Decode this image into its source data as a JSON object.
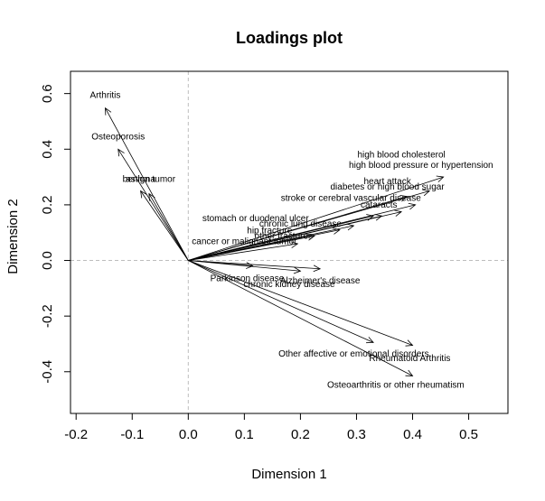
{
  "chart_data": {
    "type": "biplot-arrows",
    "title": "Loadings plot",
    "xlabel": "Dimension 1",
    "ylabel": "Dimension 2",
    "xlim": [
      -0.21,
      0.57
    ],
    "ylim": [
      -0.55,
      0.68
    ],
    "x_ticks": [
      -0.2,
      -0.1,
      0.0,
      0.1,
      0.2,
      0.3,
      0.4,
      0.5
    ],
    "x_tick_labels": [
      "-0.2",
      "-0.1",
      "0.0",
      "0.1",
      "0.2",
      "0.3",
      "0.4",
      "0.5"
    ],
    "y_ticks": [
      -0.4,
      -0.2,
      0.0,
      0.2,
      0.4,
      0.6
    ],
    "y_tick_labels": [
      "-0.4",
      "-0.2",
      "0.0",
      "0.2",
      "0.4",
      "0.6"
    ],
    "reference_lines": "dashed at x=0 and y=0",
    "variables": [
      {
        "label": "Arthritis",
        "x": -0.148,
        "y": 0.548,
        "lx": -0.148,
        "ly": 0.585
      },
      {
        "label": "Osteoporosis",
        "x": -0.125,
        "y": 0.4,
        "lx": -0.125,
        "ly": 0.435
      },
      {
        "label": "asthma",
        "x": -0.085,
        "y": 0.25,
        "lx": -0.085,
        "ly": 0.282
      },
      {
        "label": "benign tumor",
        "x": -0.07,
        "y": 0.24,
        "lx": -0.07,
        "ly": 0.282
      },
      {
        "label": "high blood cholesterol",
        "x": 0.43,
        "y": 0.25,
        "lx": 0.38,
        "ly": 0.37
      },
      {
        "label": "high blood pressure or hypertension",
        "x": 0.455,
        "y": 0.3,
        "lx": 0.415,
        "ly": 0.333
      },
      {
        "label": "heart attack",
        "x": 0.39,
        "y": 0.23,
        "lx": 0.355,
        "ly": 0.275
      },
      {
        "label": "diabetes or high blood sugar",
        "x": 0.405,
        "y": 0.2,
        "lx": 0.355,
        "ly": 0.255
      },
      {
        "label": "stroke or cerebral vascular disease",
        "x": 0.38,
        "y": 0.175,
        "lx": 0.29,
        "ly": 0.215
      },
      {
        "label": "cataracts",
        "x": 0.345,
        "y": 0.16,
        "lx": 0.34,
        "ly": 0.19
      },
      {
        "label": "stomach or duodenal ulcer",
        "x": 0.33,
        "y": 0.16,
        "lx": 0.12,
        "ly": 0.142
      },
      {
        "label": "chronic lung disease",
        "x": 0.295,
        "y": 0.125,
        "lx": 0.2,
        "ly": 0.122
      },
      {
        "label": "hip fracture",
        "x": 0.27,
        "y": 0.11,
        "lx": 0.145,
        "ly": 0.098
      },
      {
        "label": "other fractures",
        "x": 0.225,
        "y": 0.088,
        "lx": 0.17,
        "ly": 0.078
      },
      {
        "label": "cancer or malignant tumor",
        "x": 0.195,
        "y": 0.06,
        "lx": 0.1,
        "ly": 0.058
      },
      {
        "label": "Parkinson disease",
        "x": 0.115,
        "y": -0.02,
        "lx": 0.105,
        "ly": -0.075
      },
      {
        "label": "Alzheimer's disease",
        "x": 0.235,
        "y": -0.03,
        "lx": 0.235,
        "ly": -0.082
      },
      {
        "label": "chronic kidney disease",
        "x": 0.2,
        "y": -0.038,
        "lx": 0.18,
        "ly": -0.095
      },
      {
        "label": "Other affective or emotional disorders",
        "x": 0.33,
        "y": -0.295,
        "lx": 0.295,
        "ly": -0.345
      },
      {
        "label": "Rheumatoid Arthritis",
        "x": 0.4,
        "y": -0.305,
        "lx": 0.395,
        "ly": -0.362
      },
      {
        "label": "Osteoarthritis or other rheumatism",
        "x": 0.4,
        "y": -0.415,
        "lx": 0.37,
        "ly": -0.458
      }
    ]
  }
}
